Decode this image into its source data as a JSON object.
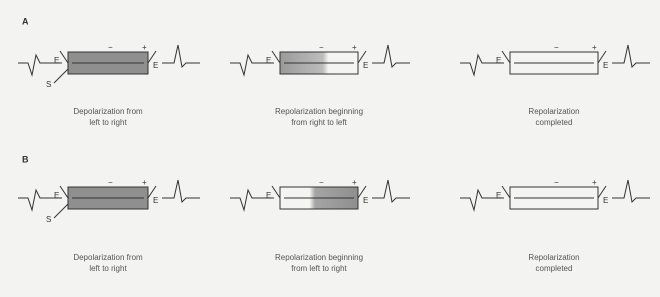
{
  "panels": [
    {
      "label": "A",
      "cells": [
        {
          "caption": [
            "Depolarization from",
            "left to right"
          ]
        },
        {
          "caption": [
            "Repolarization beginning",
            "from right to left"
          ]
        },
        {
          "caption": [
            "Repolarization",
            "completed"
          ]
        }
      ]
    },
    {
      "label": "B",
      "cells": [
        {
          "caption": [
            "Depolarization from",
            "left to right"
          ]
        },
        {
          "caption": [
            "Repolarization beginning",
            "from left to right"
          ]
        },
        {
          "caption": [
            "Repolarization",
            "completed"
          ]
        }
      ]
    }
  ],
  "electrode_label": "E",
  "stimulus_label": "S",
  "signs": {
    "plus": "+",
    "minus": "−"
  }
}
